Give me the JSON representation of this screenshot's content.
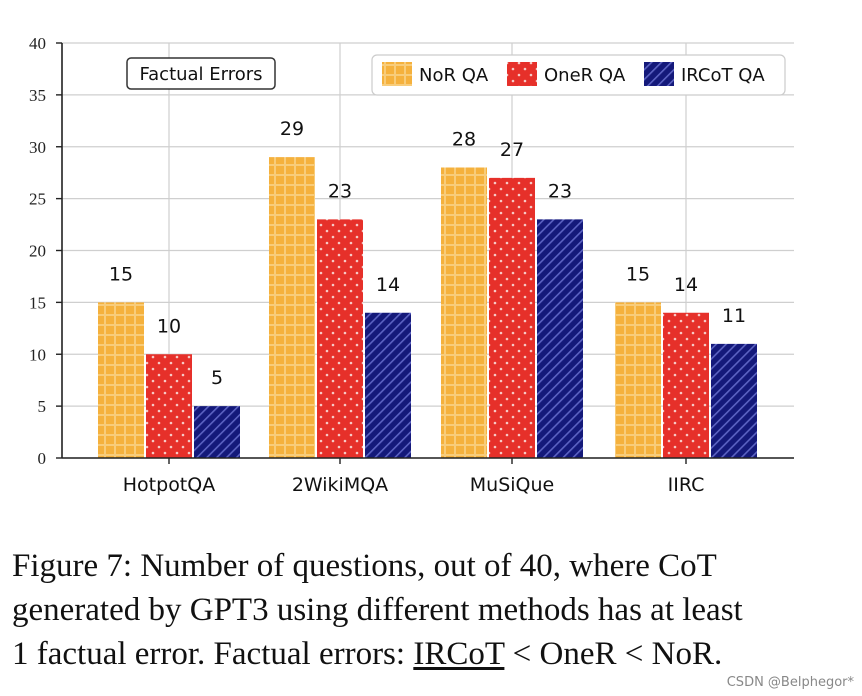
{
  "chart_data": {
    "type": "bar",
    "categories": [
      "HotpotQA",
      "2WikiMQA",
      "MuSiQue",
      "IIRC"
    ],
    "series": [
      {
        "name": "NoR QA",
        "values": [
          15,
          29,
          28,
          15
        ],
        "color": "#f5b13d",
        "pattern": "plaid"
      },
      {
        "name": "OneR QA",
        "values": [
          10,
          23,
          27,
          14
        ],
        "color": "#e6302a",
        "pattern": "dots"
      },
      {
        "name": "IRCoT QA",
        "values": [
          5,
          14,
          23,
          11
        ],
        "color": "#14197a",
        "pattern": "diagonal"
      }
    ],
    "title": "Factual Errors",
    "xlabel": "",
    "ylabel": "",
    "ylim": [
      0,
      40
    ],
    "yticks": [
      0,
      5,
      10,
      15,
      20,
      25,
      30,
      35,
      40
    ],
    "grid": true,
    "legend_position": "top-right"
  },
  "caption": {
    "line1": "Figure 7: Number of questions, out of 40, where CoT",
    "line2": "generated by GPT3 using different methods has at least",
    "line3_prefix": "1 factual error. Factual errors: ",
    "line3_ircot": "IRCoT",
    "line3_rest": " < OneR < NoR."
  },
  "watermark": "CSDN @Belphegor*"
}
